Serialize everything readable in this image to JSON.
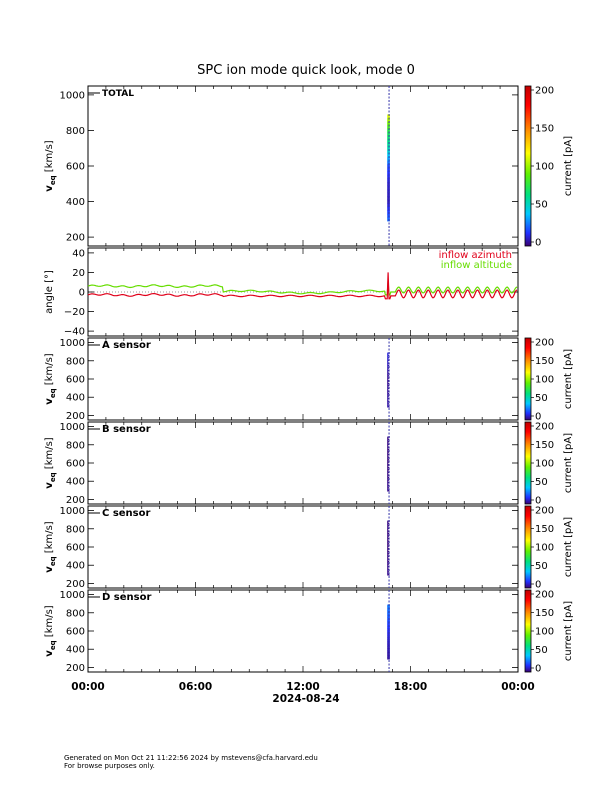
{
  "chart_data": {
    "type": "spectrogram",
    "title": "SPC ion mode quick look, mode 0",
    "date_label": "2024-08-24",
    "x_ticks": [
      "00:00",
      "06:00",
      "12:00",
      "18:00",
      "00:00"
    ],
    "xlim_hours": [
      0,
      24
    ],
    "colors": {
      "azimuth": "#e0001a",
      "altitude": "#66dd00",
      "gap_line": "#3333aa"
    },
    "colorbar": {
      "label": "current [pA]",
      "range": [
        0,
        200
      ],
      "ticks_total": [
        "0",
        "50",
        "100",
        "150",
        "200"
      ],
      "ticks_sensor": [
        "0",
        "50",
        "100",
        "150",
        "200"
      ],
      "scale": "rainbow"
    },
    "panels": [
      {
        "id": "total",
        "label": "TOTAL",
        "ylabel": "v",
        "ylabel_sub": "eq",
        "yunit": "[km/s]",
        "ylim": [
          150,
          1050
        ],
        "yticks": [
          "200",
          "400",
          "600",
          "800",
          "1000"
        ],
        "ytick_values": [
          200,
          400,
          600,
          800,
          1000
        ],
        "burst": {
          "t_start": 16.7,
          "t_end": 16.85,
          "v_min": 290,
          "v_max": 880,
          "profile": [
            {
              "v": 880,
              "c": 110
            },
            {
              "v": 800,
              "c": 75
            },
            {
              "v": 700,
              "c": 55
            },
            {
              "v": 600,
              "c": 20
            },
            {
              "v": 500,
              "c": 10
            },
            {
              "v": 400,
              "c": 8
            },
            {
              "v": 300,
              "c": 25
            }
          ]
        }
      },
      {
        "id": "angle",
        "label": "",
        "ylabel": "angle [°]",
        "ylim": [
          -45,
          45
        ],
        "yticks": [
          "40",
          "20",
          "0",
          "−20",
          "−40"
        ],
        "ytick_values": [
          40,
          20,
          0,
          -20,
          -40
        ],
        "legend": [
          "inflow azimuth",
          "inflow altitude"
        ],
        "azimuth": {
          "early": -3,
          "mid": -4,
          "spike_t": 16.75,
          "spike_v": 20,
          "osc_start": 17.2,
          "osc_amp": 4,
          "osc_period_h": 0.55,
          "osc_offset": -2
        },
        "altitude": {
          "early": 6,
          "mid": 0,
          "spike_t": 16.75,
          "spike_v": 12,
          "osc_start": 17.2,
          "osc_amp": 3,
          "osc_period_h": 0.55,
          "osc_offset": 2
        }
      },
      {
        "id": "a",
        "label": "A sensor",
        "ylabel": "v",
        "ylabel_sub": "eq",
        "yunit": "[km/s]",
        "ylim": [
          150,
          1050
        ],
        "yticks": [
          "200",
          "400",
          "600",
          "800",
          "1000"
        ],
        "ytick_values": [
          200,
          400,
          600,
          800,
          1000
        ],
        "burst": {
          "t_start": 16.7,
          "t_end": 16.85,
          "v_min": 290,
          "v_max": 880,
          "profile": [
            {
              "v": 880,
              "c": 12
            },
            {
              "v": 600,
              "c": 3
            },
            {
              "v": 300,
              "c": 6
            }
          ]
        }
      },
      {
        "id": "b",
        "label": "B sensor",
        "ylabel": "v",
        "ylabel_sub": "eq",
        "yunit": "[km/s]",
        "ylim": [
          150,
          1050
        ],
        "yticks": [
          "200",
          "400",
          "600",
          "800",
          "1000"
        ],
        "ytick_values": [
          200,
          400,
          600,
          800,
          1000
        ],
        "burst": {
          "t_start": 16.7,
          "t_end": 16.85,
          "v_min": 290,
          "v_max": 880,
          "profile": [
            {
              "v": 880,
              "c": 2
            },
            {
              "v": 600,
              "c": 1
            },
            {
              "v": 300,
              "c": 3
            }
          ]
        }
      },
      {
        "id": "c",
        "label": "C sensor",
        "ylabel": "v",
        "ylabel_sub": "eq",
        "yunit": "[km/s]",
        "ylim": [
          150,
          1050
        ],
        "yticks": [
          "200",
          "400",
          "600",
          "800",
          "1000"
        ],
        "ytick_values": [
          200,
          400,
          600,
          800,
          1000
        ],
        "burst": {
          "t_start": 16.7,
          "t_end": 16.85,
          "v_min": 290,
          "v_max": 880,
          "profile": [
            {
              "v": 880,
              "c": 2
            },
            {
              "v": 600,
              "c": 1
            },
            {
              "v": 300,
              "c": 3
            }
          ]
        }
      },
      {
        "id": "d",
        "label": "D sensor",
        "ylabel": "v",
        "ylabel_sub": "eq",
        "yunit": "[km/s]",
        "ylim": [
          150,
          1050
        ],
        "yticks": [
          "200",
          "400",
          "600",
          "800",
          "1000"
        ],
        "ytick_values": [
          200,
          400,
          600,
          800,
          1000
        ],
        "burst": {
          "t_start": 16.7,
          "t_end": 16.85,
          "v_min": 290,
          "v_max": 880,
          "profile": [
            {
              "v": 880,
              "c": 28
            },
            {
              "v": 750,
              "c": 22
            },
            {
              "v": 600,
              "c": 14
            },
            {
              "v": 450,
              "c": 8
            },
            {
              "v": 300,
              "c": 5
            }
          ]
        }
      }
    ]
  },
  "footer": {
    "line1": "Generated on Mon Oct 21 11:22:56 2024 by mstevens@cfa.harvard.edu",
    "line2": "For browse purposes only."
  }
}
